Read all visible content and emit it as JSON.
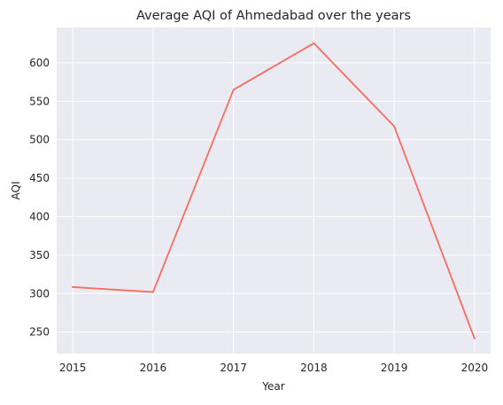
{
  "chart_data": {
    "type": "line",
    "title": "Average AQI of Ahmedabad over the years",
    "xlabel": "Year",
    "ylabel": "AQI",
    "x": [
      "2015",
      "2016",
      "2017",
      "2018",
      "2019",
      "2020"
    ],
    "series": [
      {
        "values": [
          308.5,
          302,
          565,
          625.5,
          517.5,
          241.5
        ]
      }
    ],
    "xlim": [
      2014.8,
      2020.2
    ],
    "ylim": [
      222,
      646
    ],
    "yticks": [
      250,
      300,
      350,
      400,
      450,
      500,
      550,
      600
    ],
    "grid": true,
    "colors": {
      "line": "#fa6b60",
      "plot_background": "#eaeaf2",
      "grid": "#ffffff"
    }
  }
}
